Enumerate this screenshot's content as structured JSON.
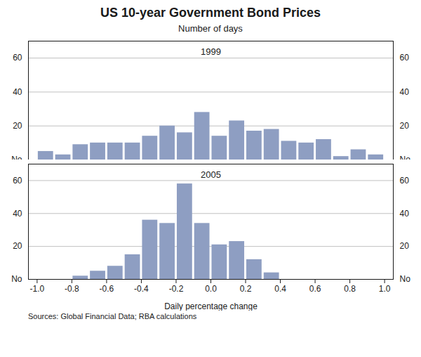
{
  "chart_data": [
    {
      "type": "bar",
      "title": "US 10-year Government Bond Prices",
      "subtitle": "Number of days",
      "annotation": "1999",
      "x": [
        -0.95,
        -0.85,
        -0.75,
        -0.65,
        -0.55,
        -0.45,
        -0.35,
        -0.25,
        -0.15,
        -0.05,
        0.05,
        0.15,
        0.25,
        0.35,
        0.45,
        0.55,
        0.65,
        0.75,
        0.85,
        0.95
      ],
      "values": [
        5,
        3,
        9,
        10,
        10,
        10,
        14,
        20,
        16,
        28,
        14,
        23,
        17,
        18,
        11,
        10,
        12,
        2,
        6,
        3
      ],
      "color": "#8E9EC2",
      "xlim": [
        -1.05,
        1.05
      ],
      "ylim": [
        0,
        70
      ],
      "yticks": [
        {
          "value": 0,
          "label": "No"
        },
        20,
        40,
        60
      ],
      "y2lim": [
        0,
        70
      ],
      "y2ticks": [
        {
          "value": 0,
          "label": "No"
        },
        20,
        40,
        60
      ],
      "grid": true,
      "tick_labels": "y"
    },
    {
      "type": "bar",
      "annotation": "2005",
      "xlabel": "Daily percentage change",
      "source": "Sources: Global Financial Data; RBA calculations",
      "x": [
        -0.95,
        -0.85,
        -0.75,
        -0.65,
        -0.55,
        -0.45,
        -0.35,
        -0.25,
        -0.15,
        -0.05,
        0.05,
        0.15,
        0.25,
        0.35,
        0.45,
        0.55,
        0.65,
        0.75,
        0.85,
        0.95
      ],
      "values": [
        0,
        0,
        2,
        5,
        8,
        15,
        36,
        34,
        58,
        34,
        21,
        23,
        12,
        4,
        0,
        0,
        0,
        0,
        0,
        0
      ],
      "color": "#8E9EC2",
      "xlim": [
        -1.05,
        1.05
      ],
      "xticks": [
        {
          "value": -1.0,
          "label": "-1.0"
        },
        {
          "value": -0.8,
          "label": "-0.8"
        },
        {
          "value": -0.6,
          "label": "-0.6"
        },
        {
          "value": -0.4,
          "label": "-0.4"
        },
        {
          "value": -0.2,
          "label": "-0.2"
        },
        {
          "value": 0.0,
          "label": "0.0"
        },
        {
          "value": 0.2,
          "label": "0.2"
        },
        {
          "value": 0.4,
          "label": "0.4"
        },
        {
          "value": 0.6,
          "label": "0.6"
        },
        {
          "value": 0.8,
          "label": "0.8"
        },
        {
          "value": 1.0,
          "label": "1.0"
        }
      ],
      "ylim": [
        0,
        70
      ],
      "yticks": [
        {
          "value": 0,
          "label": "No"
        },
        20,
        40,
        60
      ],
      "y2lim": [
        0,
        70
      ],
      "y2ticks": [
        {
          "value": 0,
          "label": "No"
        },
        20,
        40,
        60
      ],
      "grid": true
    }
  ]
}
